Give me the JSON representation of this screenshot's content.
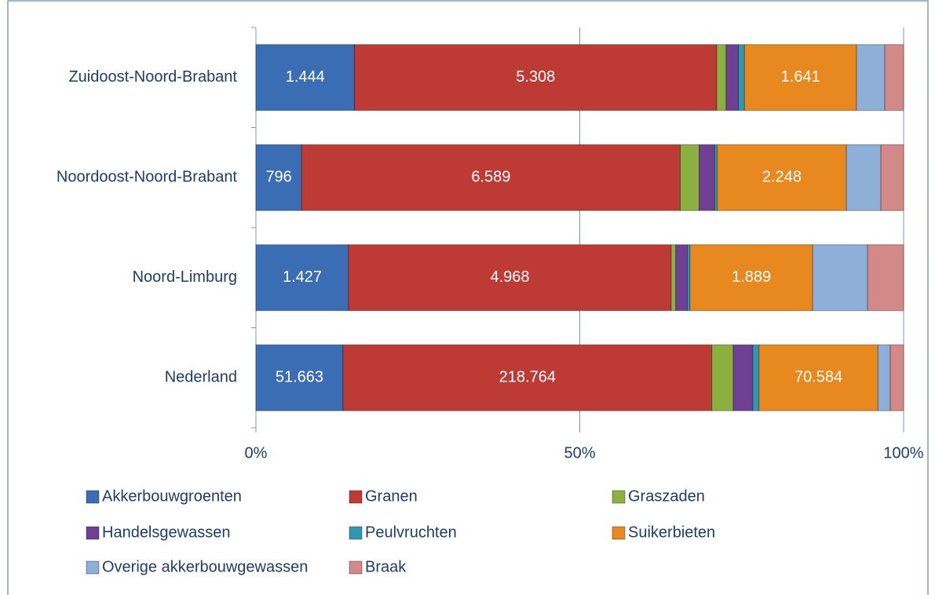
{
  "chart_data": {
    "type": "stacked-bar-100",
    "orientation": "horizontal",
    "categories": [
      "Zuidoost-Noord-Brabant",
      "Noordoost-Noord-Brabant",
      "Noord-Limburg",
      "Nederland"
    ],
    "series": [
      {
        "name": "Akkerbouwgroenten",
        "color": "#3a6db4",
        "values": [
          1444,
          796,
          1427,
          51663
        ],
        "value_labels": [
          "1.444",
          "796",
          "1.427",
          "51.663"
        ]
      },
      {
        "name": "Granen",
        "color": "#be3a34",
        "values": [
          5308,
          6589,
          4968,
          218764
        ],
        "value_labels": [
          "5.308",
          "6.589",
          "4.968",
          "218.764"
        ]
      },
      {
        "name": "Graszaden",
        "color": "#8cb040",
        "values": [
          137,
          330,
          70,
          12700
        ]
      },
      {
        "name": "Handelsgewassen",
        "color": "#6e3f92",
        "values": [
          180,
          270,
          180,
          11600
        ]
      },
      {
        "name": "Peulvruchten",
        "color": "#2e98b0",
        "values": [
          90,
          45,
          40,
          3700
        ]
      },
      {
        "name": "Suikerbieten",
        "color": "#e8891f",
        "values": [
          1641,
          2248,
          1889,
          70584
        ],
        "value_labels": [
          "1.641",
          "2.248",
          "1.889",
          "70.584"
        ]
      },
      {
        "name": "Overige akkerbouwgewassen",
        "color": "#8eafd7",
        "values": [
          415,
          600,
          845,
          7300
        ]
      },
      {
        "name": "Braak",
        "color": "#d38988",
        "values": [
          275,
          395,
          555,
          7900
        ]
      }
    ],
    "xlim": [
      0,
      100
    ],
    "xticks": [
      {
        "value": 0,
        "label": "0%"
      },
      {
        "value": 50,
        "label": "50%"
      },
      {
        "value": 100,
        "label": "100%"
      }
    ],
    "grid": true,
    "legend": "bottom"
  }
}
